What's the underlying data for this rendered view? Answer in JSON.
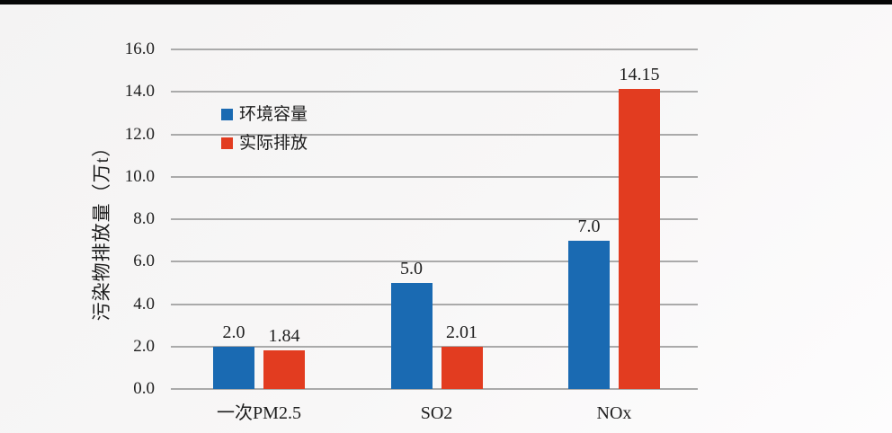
{
  "page": {
    "background_top_strip_color": "#060606",
    "text_color": "#1d1d1d",
    "grid_color": "#aaaaaa"
  },
  "chart_data": {
    "type": "bar",
    "title": "",
    "categories": [
      "一次PM2.5",
      "SO2",
      "NOx"
    ],
    "category_keys": [
      "pm25",
      "so2",
      "nox"
    ],
    "series": [
      {
        "name": "环境容量",
        "key": "capacity",
        "color": "#1a6ab2",
        "values": [
          2.0,
          5.0,
          7.0
        ],
        "value_labels": [
          "2.0",
          "5.0",
          "7.0"
        ]
      },
      {
        "name": "实际排放",
        "key": "actual",
        "color": "#e23c20",
        "values": [
          1.84,
          2.01,
          14.15
        ],
        "value_labels": [
          "1.84",
          "2.01",
          "14.15"
        ]
      }
    ],
    "xlabel": "",
    "ylabel": "污染物排放量（万t）",
    "ylim": [
      0,
      16
    ],
    "ytick_step": 2,
    "ytick_labels": [
      "0.0",
      "2.0",
      "4.0",
      "6.0",
      "8.0",
      "10.0",
      "12.0",
      "14.0",
      "16.0"
    ],
    "grid": true,
    "legend_position": "inside-upper-left"
  }
}
